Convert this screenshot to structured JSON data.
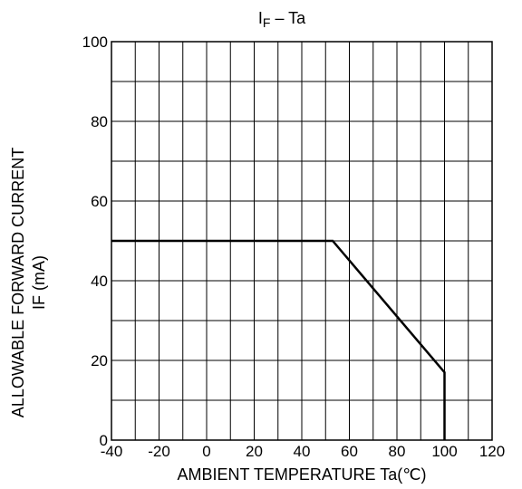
{
  "chart_data": {
    "type": "line",
    "title": {
      "main": "I",
      "sub": "F",
      "rest": " – Ta"
    },
    "xlabel": "AMBIENT TEMPERATURE Ta(℃)",
    "ylabel_line1": "ALLOWABLE FORWARD CURRENT",
    "ylabel_line2": "IF (mA)",
    "xlim": [
      -40,
      120
    ],
    "ylim": [
      0,
      100
    ],
    "x_ticks": [
      -40,
      -20,
      0,
      20,
      40,
      60,
      80,
      100,
      120
    ],
    "y_ticks": [
      0,
      20,
      40,
      60,
      80,
      100
    ],
    "x_tick_labels": [
      "-40",
      "-20",
      "0",
      "20",
      "40",
      "60",
      "80",
      "100",
      "120"
    ],
    "y_tick_labels": [
      "0",
      "20",
      "40",
      "60",
      "80",
      "100"
    ],
    "x_grid_step": 10,
    "y_grid_step": 10,
    "grid": true,
    "series": [
      {
        "x": [
          -40,
          53,
          100,
          100
        ],
        "y": [
          50,
          50,
          17,
          0
        ]
      }
    ]
  }
}
